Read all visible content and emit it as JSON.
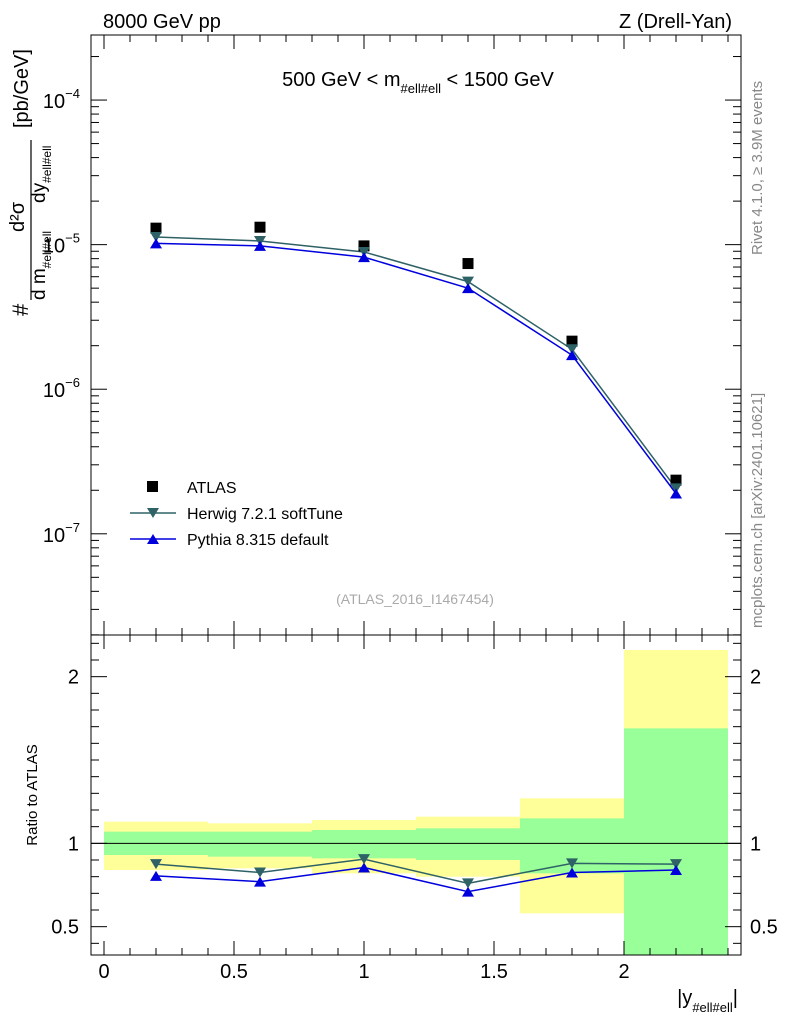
{
  "header": {
    "left": "8000 GeV pp",
    "right": "Z (Drell-Yan)"
  },
  "side": {
    "rivet": "Rivet 4.1.0, ≥ 3.9M events",
    "mcplots": "mcplots.cern.ch [arXiv:2401.10621]"
  },
  "chart_data": {
    "type": "line",
    "title": {
      "pre": "500 GeV < m",
      "sub": "#ell#ell",
      "post": " < 1500 GeV"
    },
    "analysis_label": "(ATLAS_2016_I1467454)",
    "ylabel": {
      "hash": "#",
      "d2sigma": "d²σ",
      "dm": "d m",
      "dm_sub": "#ell#ell",
      "dy": "dy",
      "dy_sub": "#ell#ell",
      "units": "[pb/GeV]"
    },
    "xlabel": {
      "pre": "|y",
      "sub": "#ell#ell",
      "post": "|"
    },
    "ratio_ylabel": "Ratio to ATLAS",
    "xlim": [
      -0.05,
      2.45
    ],
    "ylim_log10": [
      -7.7,
      -3.55
    ],
    "ratio_ylim": [
      0.33,
      2.25
    ],
    "x_ticks": [
      {
        "v": 0,
        "label": "0"
      },
      {
        "v": 0.5,
        "label": "0.5"
      },
      {
        "v": 1,
        "label": "1"
      },
      {
        "v": 1.5,
        "label": "1.5"
      },
      {
        "v": 2,
        "label": "2"
      }
    ],
    "y_ticks": [
      {
        "exp": -7,
        "base": "10",
        "sup": "−7"
      },
      {
        "exp": -6,
        "base": "10",
        "sup": "−6"
      },
      {
        "exp": -5,
        "base": "10",
        "sup": "−5"
      },
      {
        "exp": -4,
        "base": "10",
        "sup": "−4"
      }
    ],
    "ratio_ticks": [
      {
        "v": 0.5,
        "label": "0.5"
      },
      {
        "v": 1,
        "label": "1"
      },
      {
        "v": 2,
        "label": "2"
      }
    ],
    "bins": [
      [
        0.0,
        0.4
      ],
      [
        0.4,
        0.8
      ],
      [
        0.8,
        1.2
      ],
      [
        1.2,
        1.6
      ],
      [
        1.6,
        2.0
      ],
      [
        2.0,
        2.4
      ]
    ],
    "x": [
      0.2,
      0.6,
      1.0,
      1.4,
      1.8,
      2.2
    ],
    "series": [
      {
        "name": "ATLAS",
        "marker": "square",
        "color": "#000000",
        "values": [
          1.3e-05,
          1.32e-05,
          9.8e-06,
          7.4e-06,
          2.15e-06,
          2.35e-07
        ]
      },
      {
        "name": "Herwig 7.2.1 softTune",
        "marker": "triangle-down",
        "color": "#2e6266",
        "values": [
          1.13e-05,
          1.06e-05,
          8.9e-06,
          5.55e-06,
          1.89e-06,
          2.06e-07
        ]
      },
      {
        "name": "Pythia 8.315 default",
        "marker": "triangle-up",
        "color": "#0000dd",
        "values": [
          1.02e-05,
          9.8e-06,
          8.2e-06,
          5e-06,
          1.72e-06,
          1.9e-07
        ]
      }
    ],
    "ratios": {
      "Herwig 7.2.1 softTune": [
        0.875,
        0.825,
        0.905,
        0.76,
        0.88,
        0.875
      ],
      "Pythia 8.315 default": [
        0.805,
        0.77,
        0.855,
        0.71,
        0.825,
        0.84
      ]
    },
    "uncertainty_bands": {
      "green": [
        [
          0.93,
          1.07
        ],
        [
          0.92,
          1.07
        ],
        [
          0.91,
          1.08
        ],
        [
          0.9,
          1.09
        ],
        [
          0.82,
          1.15
        ],
        [
          0.33,
          1.69
        ]
      ],
      "yellow": [
        [
          0.84,
          1.13
        ],
        [
          0.85,
          1.12
        ],
        [
          0.82,
          1.14
        ],
        [
          0.8,
          1.16
        ],
        [
          0.58,
          1.27
        ],
        [
          0.33,
          2.16
        ]
      ]
    },
    "band_colors": {
      "green": "#99ff99",
      "yellow": "#ffff99"
    }
  }
}
